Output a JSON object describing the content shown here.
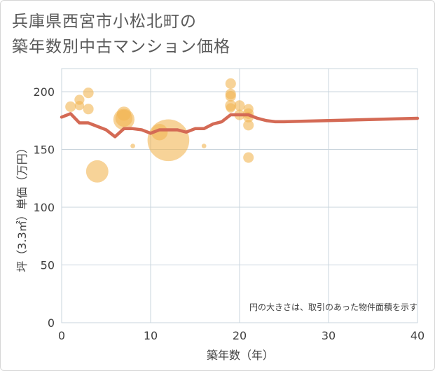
{
  "title_lines": [
    "兵庫県西宮市小松北町の",
    "築年数別中古マンション価格"
  ],
  "chart_data": {
    "type": "scatter",
    "xlabel": "築年数（年）",
    "ylabel": "坪（3.3㎡）単価（万円）",
    "xlim": [
      0,
      40
    ],
    "ylim": [
      0,
      220
    ],
    "x_ticks": [
      "0",
      "10",
      "20",
      "30",
      "40"
    ],
    "y_ticks": [
      "0",
      "50",
      "100",
      "150",
      "200"
    ],
    "grid": true,
    "note": "円の大きさは、取引のあった物件面積を示す",
    "colors": {
      "bubble": "#f2b653",
      "line": "#d46a55",
      "grid": "#c9d4dd"
    },
    "bubbles": [
      {
        "x": 1,
        "y": 187,
        "size": 1.2
      },
      {
        "x": 2,
        "y": 193,
        "size": 1.1
      },
      {
        "x": 2,
        "y": 188,
        "size": 1.0
      },
      {
        "x": 3,
        "y": 199,
        "size": 1.2
      },
      {
        "x": 3,
        "y": 185,
        "size": 1.2
      },
      {
        "x": 4,
        "y": 131,
        "size": 3.2
      },
      {
        "x": 7,
        "y": 181,
        "size": 1.8
      },
      {
        "x": 7,
        "y": 177,
        "size": 2.3
      },
      {
        "x": 7,
        "y": 176,
        "size": 3.0
      },
      {
        "x": 8,
        "y": 153,
        "size": 0.2
      },
      {
        "x": 11,
        "y": 165,
        "size": 2.2
      },
      {
        "x": 12,
        "y": 158,
        "size": 6.5
      },
      {
        "x": 16,
        "y": 153,
        "size": 0.2
      },
      {
        "x": 19,
        "y": 207,
        "size": 1.2
      },
      {
        "x": 19,
        "y": 198,
        "size": 1.2
      },
      {
        "x": 19,
        "y": 196,
        "size": 1.2
      },
      {
        "x": 19,
        "y": 188,
        "size": 1.3
      },
      {
        "x": 19,
        "y": 186,
        "size": 1.0
      },
      {
        "x": 20,
        "y": 188,
        "size": 1.2
      },
      {
        "x": 20,
        "y": 180,
        "size": 1.2
      },
      {
        "x": 21,
        "y": 185,
        "size": 1.1
      },
      {
        "x": 21,
        "y": 181,
        "size": 1.2
      },
      {
        "x": 21,
        "y": 178,
        "size": 1.2
      },
      {
        "x": 21,
        "y": 171,
        "size": 1.2
      },
      {
        "x": 21,
        "y": 143,
        "size": 1.2
      }
    ],
    "trend": {
      "x": [
        0,
        1,
        2,
        3,
        4,
        5,
        6,
        7,
        8,
        9,
        10,
        11,
        12,
        13,
        14,
        15,
        16,
        17,
        18,
        19,
        20,
        21,
        22,
        23,
        24,
        25,
        30,
        35,
        40
      ],
      "y": [
        178,
        181,
        173,
        173,
        170,
        167,
        161,
        168,
        168,
        167,
        164,
        167,
        167,
        167,
        165,
        168,
        168,
        172,
        174,
        180,
        180,
        180,
        177,
        175,
        174,
        174,
        175,
        176,
        177
      ]
    }
  }
}
